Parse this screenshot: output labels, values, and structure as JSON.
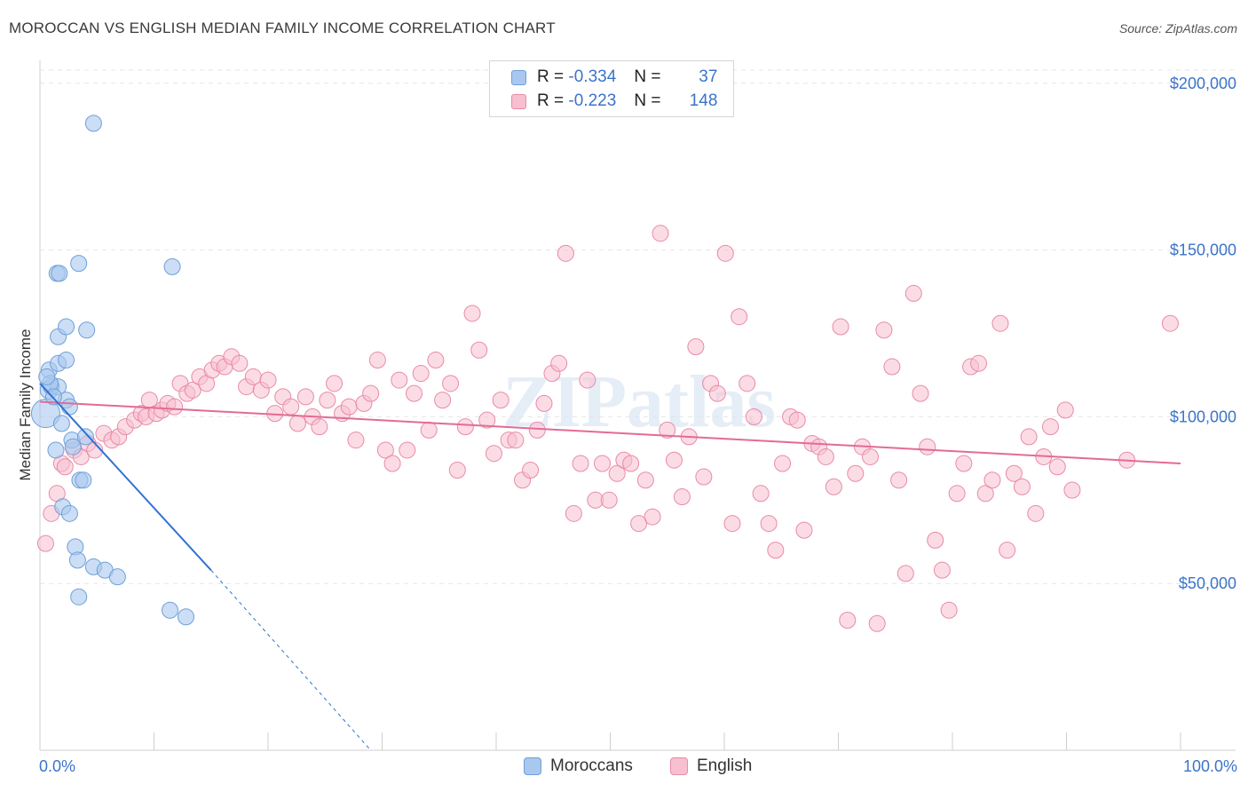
{
  "title": "MOROCCAN VS ENGLISH MEDIAN FAMILY INCOME CORRELATION CHART",
  "source": "Source: ZipAtlas.com",
  "watermark": "ZIPatlas",
  "legend": {
    "rows": [
      {
        "r_label": "R =",
        "r_value": "-0.334",
        "n_label": "N =",
        "n_value": "37",
        "color": "#a9c8ef",
        "border": "#6f9fd9"
      },
      {
        "r_label": "R =",
        "r_value": "-0.223",
        "n_label": "N =",
        "n_value": "148",
        "color": "#f7bfd0",
        "border": "#e98aa8"
      }
    ]
  },
  "bottom_legend": {
    "moroccans": "Moroccans",
    "english": "English"
  },
  "chart_data": {
    "type": "scatter",
    "ylabel": "Median Family Income",
    "x_tick_labels": [
      "0.0%",
      "100.0%"
    ],
    "y_tick_labels": [
      "$200,000",
      "$150,000",
      "$100,000",
      "$50,000"
    ],
    "y_ticks": [
      200000,
      150000,
      100000,
      50000
    ],
    "xlim": [
      0,
      100
    ],
    "ylim": [
      0,
      205000
    ],
    "grid": true,
    "series": [
      {
        "name": "Moroccans",
        "color": "#a9c8ef",
        "stroke": "#6f9fd9",
        "line_color": "#2f72d2",
        "trend": {
          "x0": 0,
          "y0": 110000,
          "x1": 15,
          "y1": 54000,
          "dash_to_x": 29,
          "dash_to_y": 0
        },
        "points": [
          [
            4.7,
            188000,
            9
          ],
          [
            0.5,
            101000,
            16
          ],
          [
            0.8,
            108000,
            10
          ],
          [
            1.0,
            109000,
            9
          ],
          [
            1.6,
            109000,
            9
          ],
          [
            0.8,
            114000,
            9
          ],
          [
            1.6,
            116000,
            9
          ],
          [
            2.3,
            117000,
            9
          ],
          [
            1.6,
            124000,
            9
          ],
          [
            2.3,
            127000,
            9
          ],
          [
            4.1,
            126000,
            9
          ],
          [
            1.5,
            143000,
            9
          ],
          [
            1.7,
            143000,
            9
          ],
          [
            3.4,
            146000,
            9
          ],
          [
            11.6,
            145000,
            9
          ],
          [
            2.3,
            105000,
            9
          ],
          [
            2.6,
            103000,
            9
          ],
          [
            2.8,
            93000,
            9
          ],
          [
            2.9,
            91000,
            9
          ],
          [
            4.0,
            94000,
            9
          ],
          [
            1.4,
            90000,
            9
          ],
          [
            3.5,
            81000,
            9
          ],
          [
            3.8,
            81000,
            9
          ],
          [
            2.0,
            73000,
            9
          ],
          [
            2.6,
            71000,
            9
          ],
          [
            3.1,
            61000,
            9
          ],
          [
            3.3,
            57000,
            9
          ],
          [
            4.7,
            55000,
            9
          ],
          [
            5.7,
            54000,
            9
          ],
          [
            6.8,
            52000,
            9
          ],
          [
            3.4,
            46000,
            9
          ],
          [
            11.4,
            42000,
            9
          ],
          [
            12.8,
            40000,
            9
          ],
          [
            0.9,
            110000,
            9
          ],
          [
            1.2,
            106000,
            9
          ],
          [
            0.6,
            112000,
            9
          ],
          [
            1.9,
            98000,
            9
          ]
        ]
      },
      {
        "name": "English",
        "color": "#f7bfd0",
        "stroke": "#e98aa8",
        "line_color": "#e36b95",
        "trend": {
          "x0": 0,
          "y0": 104500,
          "x1": 100,
          "y1": 86000
        },
        "points": [
          [
            0.5,
            62000,
            9
          ],
          [
            1.0,
            71000,
            9
          ],
          [
            1.5,
            77000,
            9
          ],
          [
            1.9,
            86000,
            9
          ],
          [
            2.2,
            85000,
            9
          ],
          [
            3.0,
            90000,
            9
          ],
          [
            3.6,
            88000,
            9
          ],
          [
            4.2,
            92000,
            9
          ],
          [
            4.8,
            90000,
            9
          ],
          [
            5.6,
            95000,
            9
          ],
          [
            6.3,
            93000,
            9
          ],
          [
            6.9,
            94000,
            9
          ],
          [
            7.5,
            97000,
            9
          ],
          [
            8.3,
            99000,
            9
          ],
          [
            8.9,
            101000,
            9
          ],
          [
            9.3,
            100000,
            9
          ],
          [
            9.6,
            105000,
            9
          ],
          [
            10.2,
            101000,
            9
          ],
          [
            10.7,
            102000,
            9
          ],
          [
            11.2,
            104000,
            9
          ],
          [
            11.8,
            103000,
            9
          ],
          [
            12.3,
            110000,
            9
          ],
          [
            12.9,
            107000,
            9
          ],
          [
            13.4,
            108000,
            9
          ],
          [
            14.0,
            112000,
            9
          ],
          [
            14.6,
            110000,
            9
          ],
          [
            15.1,
            114000,
            9
          ],
          [
            15.7,
            116000,
            9
          ],
          [
            16.2,
            115000,
            9
          ],
          [
            16.8,
            118000,
            9
          ],
          [
            17.5,
            116000,
            9
          ],
          [
            18.1,
            109000,
            9
          ],
          [
            18.7,
            112000,
            9
          ],
          [
            19.4,
            108000,
            9
          ],
          [
            20.0,
            111000,
            9
          ],
          [
            20.6,
            101000,
            9
          ],
          [
            21.3,
            106000,
            9
          ],
          [
            22.0,
            103000,
            9
          ],
          [
            22.6,
            98000,
            9
          ],
          [
            23.3,
            106000,
            9
          ],
          [
            23.9,
            100000,
            9
          ],
          [
            24.5,
            97000,
            9
          ],
          [
            25.2,
            105000,
            9
          ],
          [
            25.8,
            110000,
            9
          ],
          [
            26.5,
            101000,
            9
          ],
          [
            27.1,
            103000,
            9
          ],
          [
            27.7,
            93000,
            9
          ],
          [
            28.4,
            104000,
            9
          ],
          [
            29.0,
            107000,
            9
          ],
          [
            29.6,
            117000,
            9
          ],
          [
            30.3,
            90000,
            9
          ],
          [
            30.9,
            86000,
            9
          ],
          [
            31.5,
            111000,
            9
          ],
          [
            32.2,
            90000,
            9
          ],
          [
            32.8,
            107000,
            9
          ],
          [
            33.4,
            113000,
            9
          ],
          [
            34.1,
            96000,
            9
          ],
          [
            34.7,
            117000,
            9
          ],
          [
            35.3,
            105000,
            9
          ],
          [
            36.0,
            110000,
            9
          ],
          [
            36.6,
            84000,
            9
          ],
          [
            37.3,
            97000,
            9
          ],
          [
            37.9,
            131000,
            9
          ],
          [
            38.5,
            120000,
            9
          ],
          [
            39.2,
            99000,
            9
          ],
          [
            39.8,
            89000,
            9
          ],
          [
            40.4,
            105000,
            9
          ],
          [
            41.1,
            93000,
            9
          ],
          [
            41.7,
            93000,
            9
          ],
          [
            42.3,
            81000,
            9
          ],
          [
            43.0,
            84000,
            9
          ],
          [
            43.6,
            96000,
            9
          ],
          [
            44.2,
            104000,
            9
          ],
          [
            44.9,
            113000,
            9
          ],
          [
            45.5,
            116000,
            9
          ],
          [
            46.1,
            149000,
            9
          ],
          [
            46.8,
            71000,
            9
          ],
          [
            47.4,
            86000,
            9
          ],
          [
            48.0,
            111000,
            9
          ],
          [
            48.7,
            75000,
            9
          ],
          [
            49.3,
            86000,
            9
          ],
          [
            49.9,
            75000,
            9
          ],
          [
            50.6,
            83000,
            9
          ],
          [
            51.2,
            87000,
            9
          ],
          [
            51.8,
            86000,
            9
          ],
          [
            52.5,
            68000,
            9
          ],
          [
            53.1,
            81000,
            9
          ],
          [
            53.7,
            70000,
            9
          ],
          [
            54.4,
            155000,
            9
          ],
          [
            55.0,
            96000,
            9
          ],
          [
            55.6,
            87000,
            9
          ],
          [
            56.3,
            76000,
            9
          ],
          [
            56.9,
            94000,
            9
          ],
          [
            57.5,
            121000,
            9
          ],
          [
            58.2,
            82000,
            9
          ],
          [
            58.8,
            110000,
            9
          ],
          [
            59.4,
            107000,
            9
          ],
          [
            60.1,
            149000,
            9
          ],
          [
            60.7,
            68000,
            9
          ],
          [
            61.3,
            130000,
            9
          ],
          [
            62.0,
            110000,
            9
          ],
          [
            62.6,
            100000,
            9
          ],
          [
            63.2,
            77000,
            9
          ],
          [
            63.9,
            68000,
            9
          ],
          [
            64.5,
            60000,
            9
          ],
          [
            65.1,
            86000,
            9
          ],
          [
            65.8,
            100000,
            9
          ],
          [
            66.4,
            99000,
            9
          ],
          [
            67.0,
            66000,
            9
          ],
          [
            67.7,
            92000,
            9
          ],
          [
            68.3,
            91000,
            9
          ],
          [
            68.9,
            88000,
            9
          ],
          [
            69.6,
            79000,
            9
          ],
          [
            70.2,
            127000,
            9
          ],
          [
            70.8,
            39000,
            9
          ],
          [
            71.5,
            83000,
            9
          ],
          [
            72.1,
            91000,
            9
          ],
          [
            72.8,
            88000,
            9
          ],
          [
            73.4,
            38000,
            9
          ],
          [
            74.0,
            126000,
            9
          ],
          [
            74.7,
            115000,
            9
          ],
          [
            75.3,
            81000,
            9
          ],
          [
            75.9,
            53000,
            9
          ],
          [
            76.6,
            137000,
            9
          ],
          [
            77.2,
            107000,
            9
          ],
          [
            77.8,
            91000,
            9
          ],
          [
            78.5,
            63000,
            9
          ],
          [
            79.1,
            54000,
            9
          ],
          [
            79.7,
            42000,
            9
          ],
          [
            80.4,
            77000,
            9
          ],
          [
            81.0,
            86000,
            9
          ],
          [
            81.6,
            115000,
            9
          ],
          [
            82.3,
            116000,
            9
          ],
          [
            82.9,
            77000,
            9
          ],
          [
            83.5,
            81000,
            9
          ],
          [
            84.2,
            128000,
            9
          ],
          [
            84.8,
            60000,
            9
          ],
          [
            85.4,
            83000,
            9
          ],
          [
            86.1,
            79000,
            9
          ],
          [
            86.7,
            94000,
            9
          ],
          [
            87.3,
            71000,
            9
          ],
          [
            88.0,
            88000,
            9
          ],
          [
            88.6,
            97000,
            9
          ],
          [
            89.2,
            85000,
            9
          ],
          [
            89.9,
            102000,
            9
          ],
          [
            90.5,
            78000,
            9
          ],
          [
            95.3,
            87000,
            9
          ],
          [
            99.1,
            128000,
            9
          ]
        ]
      }
    ]
  }
}
